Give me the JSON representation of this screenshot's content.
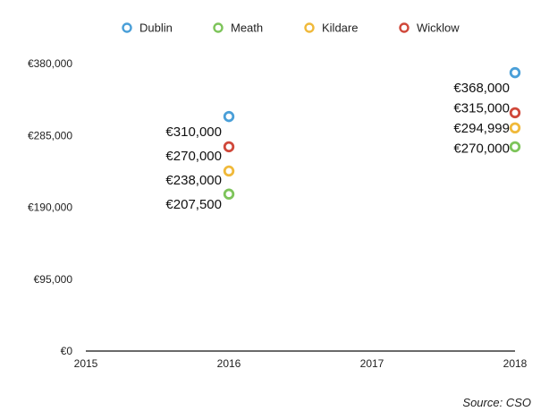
{
  "chart_data": {
    "type": "scatter",
    "legend_position": "top",
    "grid": false,
    "x_ticks": [
      "2015",
      "2016",
      "2017",
      "2018"
    ],
    "xlim": [
      2015,
      2018
    ],
    "y_ticks": [
      "€0",
      "€95,000",
      "€190,000",
      "€285,000",
      "€380,000"
    ],
    "ylim": [
      0,
      380000
    ],
    "source": "Source: CSO",
    "series": [
      {
        "name": "Dublin",
        "color": "#4a9fd8",
        "points": [
          {
            "x": 2016,
            "y": 310000,
            "label": "€310,000"
          },
          {
            "x": 2018,
            "y": 368000,
            "label": "€368,000"
          }
        ]
      },
      {
        "name": "Meath",
        "color": "#7dc45a",
        "points": [
          {
            "x": 2016,
            "y": 207500,
            "label": "€207,500"
          },
          {
            "x": 2018,
            "y": 270000,
            "label": "€270,000"
          }
        ]
      },
      {
        "name": "Kildare",
        "color": "#f0b93a",
        "points": [
          {
            "x": 2016,
            "y": 238000,
            "label": "€238,000"
          },
          {
            "x": 2018,
            "y": 294999,
            "label": "€294,999"
          }
        ]
      },
      {
        "name": "Wicklow",
        "color": "#d0483a",
        "points": [
          {
            "x": 2016,
            "y": 270000,
            "label": "€270,000"
          },
          {
            "x": 2018,
            "y": 315000,
            "label": "€315,000"
          }
        ]
      }
    ]
  }
}
